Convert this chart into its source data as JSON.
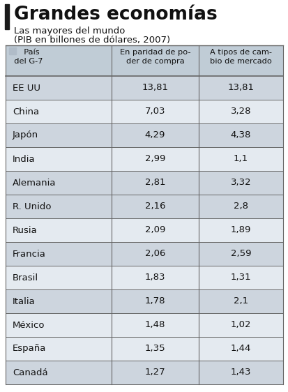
{
  "title": "Grandes economías",
  "subtitle1": "Las mayores del mundo",
  "subtitle2": "(PIB en billones de dólares, 2007)",
  "header_col1a": "  País",
  "header_col1b": "  del G-7",
  "header_col2a": "En paridad de po-",
  "header_col2b": "der de compra",
  "header_col3a": "A tipos de cam-",
  "header_col3b": "bio de mercado",
  "countries": [
    "EE UU",
    "China",
    "Japón",
    "India",
    "Alemania",
    "R. Unido",
    "Rusia",
    "Francia",
    "Brasil",
    "Italia",
    "México",
    "España",
    "Canadá"
  ],
  "col2": [
    "13,81",
    "7,03",
    "4,29",
    "2,99",
    "2,81",
    "2,16",
    "2,09",
    "2,06",
    "1,83",
    "1,78",
    "1,48",
    "1,35",
    "1,27"
  ],
  "col3": [
    "13,81",
    "3,28",
    "4,38",
    "1,1",
    "3,32",
    "2,8",
    "1,89",
    "2,59",
    "1,31",
    "2,1",
    "1,02",
    "1,44",
    "1,43"
  ],
  "g7_countries": [
    "EE UU",
    "Japón",
    "Alemania",
    "R. Unido",
    "Francia",
    "Italia",
    "Canadá"
  ],
  "bg_color": "#ffffff",
  "row_shaded": "#cdd5de",
  "row_light": "#e4eaf0",
  "header_bg": "#c0ccd6",
  "title_bar_color": "#1a1a1a",
  "border_color": "#666666",
  "text_color": "#111111",
  "legend_sq_color": "#b0bcc8"
}
